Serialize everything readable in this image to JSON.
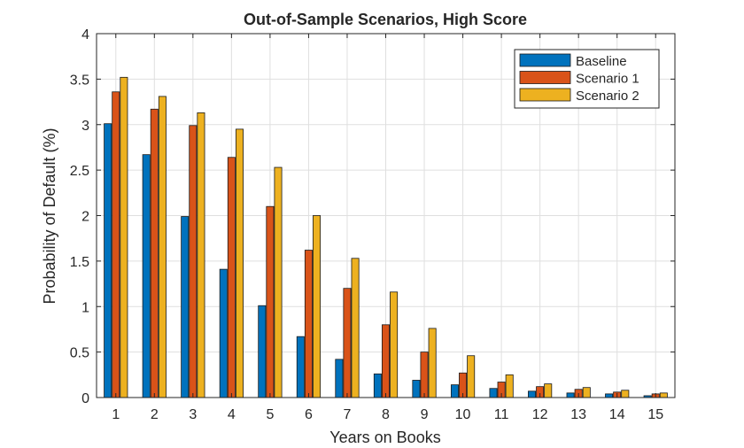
{
  "chart_data": {
    "type": "bar",
    "title": "Out-of-Sample Scenarios, High Score",
    "xlabel": "Years on Books",
    "ylabel": "Probability of Default (%)",
    "ylim": [
      0,
      4
    ],
    "yticks": [
      "0",
      "0.5",
      "1",
      "1.5",
      "2",
      "2.5",
      "3",
      "3.5",
      "4"
    ],
    "grid": true,
    "legend_position": "top-right",
    "categories": [
      "1",
      "2",
      "3",
      "4",
      "5",
      "6",
      "7",
      "8",
      "9",
      "10",
      "11",
      "12",
      "13",
      "14",
      "15"
    ],
    "series": [
      {
        "name": "Baseline",
        "color": "#0072BD",
        "values": [
          3.01,
          2.67,
          1.99,
          1.41,
          1.01,
          0.67,
          0.42,
          0.26,
          0.19,
          0.14,
          0.1,
          0.07,
          0.05,
          0.04,
          0.02
        ]
      },
      {
        "name": "Scenario 1",
        "color": "#D95319",
        "values": [
          3.36,
          3.17,
          2.99,
          2.64,
          2.1,
          1.62,
          1.2,
          0.8,
          0.5,
          0.27,
          0.17,
          0.12,
          0.09,
          0.06,
          0.04
        ]
      },
      {
        "name": "Scenario 2",
        "color": "#EDB120",
        "values": [
          3.52,
          3.31,
          3.13,
          2.95,
          2.53,
          2.0,
          1.53,
          1.16,
          0.76,
          0.46,
          0.25,
          0.15,
          0.11,
          0.08,
          0.05
        ]
      }
    ]
  }
}
